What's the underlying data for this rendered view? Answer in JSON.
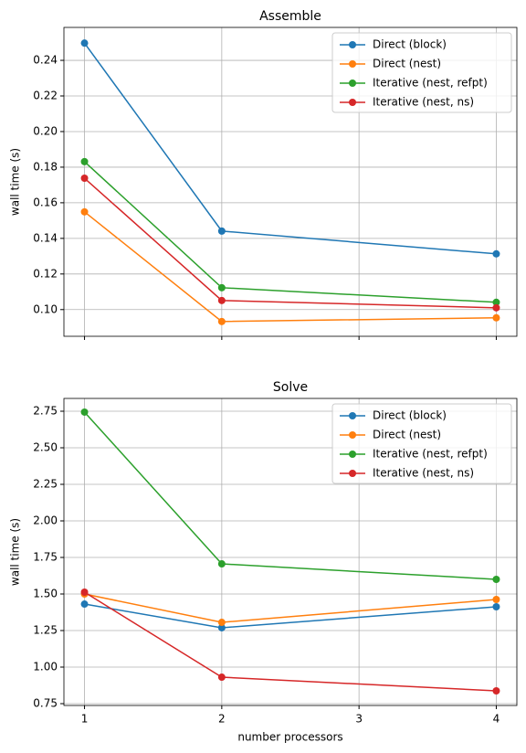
{
  "chart_data": [
    {
      "type": "line",
      "title": "Assemble",
      "ylabel": "wall time (s)",
      "x": [
        1,
        2,
        4
      ],
      "xlim": [
        0.85,
        4.15
      ],
      "xticks": [
        1,
        2,
        3,
        4
      ],
      "show_xticklabels": false,
      "ylim": [
        0.085,
        0.2585
      ],
      "yticks": [
        {
          "value": 0.1,
          "label": "0.10"
        },
        0.12,
        0.14,
        0.16,
        0.18,
        {
          "value": 0.2,
          "label": "0.20"
        },
        0.22,
        0.24
      ],
      "grid": true,
      "legend": "upper right",
      "series": [
        {
          "name": "Direct (block)",
          "color": "#1f77b4",
          "values": [
            0.2497,
            0.1441,
            0.1313
          ]
        },
        {
          "name": "Direct (nest)",
          "color": "#ff7f0e",
          "values": [
            0.1549,
            0.0933,
            0.0954
          ]
        },
        {
          "name": "Iterative (nest, refpt)",
          "color": "#2ca02c",
          "values": [
            0.1831,
            0.1123,
            0.1041
          ]
        },
        {
          "name": "Iterative (nest, ns)",
          "color": "#d62728",
          "values": [
            0.1738,
            0.1051,
            0.101
          ]
        }
      ]
    },
    {
      "type": "line",
      "title": "Solve",
      "ylabel": "wall time (s)",
      "xlabel": "number processors",
      "x": [
        1,
        2,
        4
      ],
      "xlim": [
        0.85,
        4.15
      ],
      "xticks": [
        1,
        2,
        3,
        4
      ],
      "show_xticklabels": true,
      "ylim": [
        0.7375,
        2.8375
      ],
      "yticks": [
        0.75,
        {
          "value": 1.0,
          "label": "1.00"
        },
        1.25,
        {
          "value": 1.5,
          "label": "1.50"
        },
        1.75,
        {
          "value": 2.0,
          "label": "2.00"
        },
        2.25,
        {
          "value": 2.5,
          "label": "2.50"
        },
        2.75
      ],
      "grid": true,
      "legend": "upper right",
      "series": [
        {
          "name": "Direct (block)",
          "color": "#1f77b4",
          "values": [
            1.431,
            1.269,
            1.4125
          ]
        },
        {
          "name": "Direct (nest)",
          "color": "#ff7f0e",
          "values": [
            1.5,
            1.306,
            1.4625
          ]
        },
        {
          "name": "Iterative (nest, refpt)",
          "color": "#2ca02c",
          "values": [
            2.744,
            1.706,
            1.6
          ]
        },
        {
          "name": "Iterative (nest, ns)",
          "color": "#d62728",
          "values": [
            1.5125,
            0.931,
            0.8375
          ]
        }
      ]
    }
  ]
}
